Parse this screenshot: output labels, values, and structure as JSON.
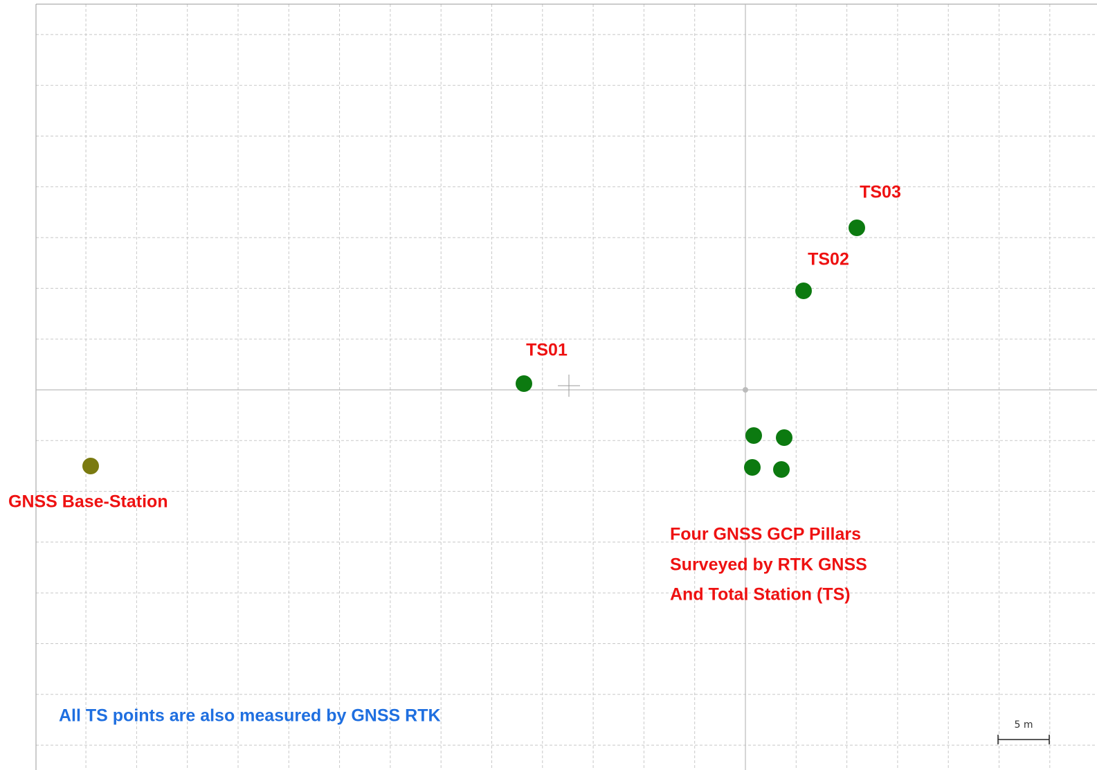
{
  "points": [
    {
      "label": "TS01"
    },
    {
      "label": "TS02"
    },
    {
      "label": "TS03"
    }
  ],
  "base_station": {
    "label": "GNSS Base-Station"
  },
  "pillars": {
    "label_lines": [
      "Four GNSS GCP Pillars",
      "Surveyed by RTK GNSS",
      "And Total Station (TS)"
    ]
  },
  "note": "All TS points are also measured by GNSS RTK",
  "scale_bar": {
    "label": "5 m"
  }
}
